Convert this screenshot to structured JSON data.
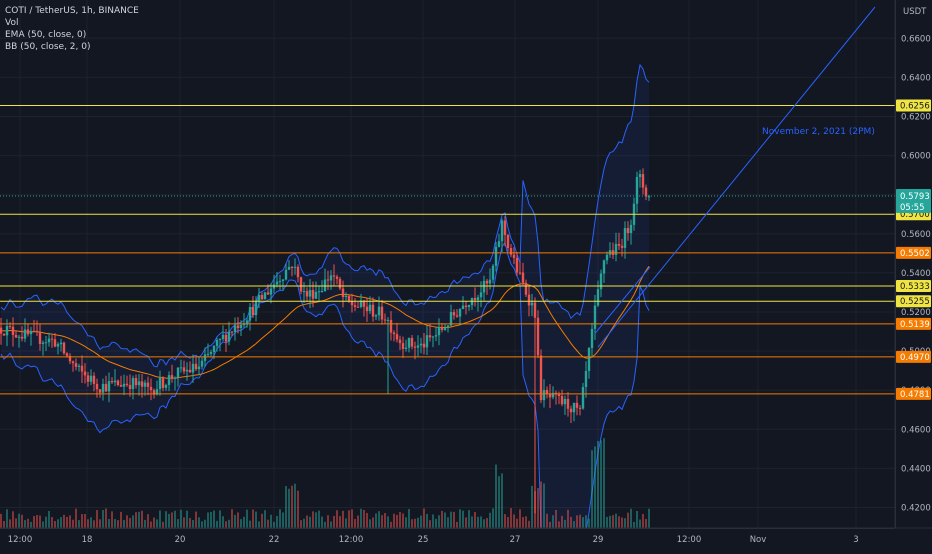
{
  "legend": {
    "symbol": "COTI / TetherUS, 1h, BINANCE",
    "vol": "Vol",
    "ema": "EMA (50, close, 0)",
    "bb": "BB (50, close, 2, 0)"
  },
  "price_axis": {
    "currency": "USDT",
    "ticks": [
      "0.6600",
      "0.6400",
      "0.6200",
      "0.6000",
      "0.5800",
      "0.5600",
      "0.5400",
      "0.5200",
      "0.5000",
      "0.4800",
      "0.4600",
      "0.4400",
      "0.4200"
    ]
  },
  "levels": [
    {
      "label": "0.6256",
      "color": "#f0e442",
      "style": "yellow"
    },
    {
      "label": "0.5700",
      "color": "#f0e442",
      "style": "yellow"
    },
    {
      "label": "0.5502",
      "color": "#f57c00",
      "style": "orange"
    },
    {
      "label": "0.5333",
      "color": "#f0e442",
      "style": "yellow"
    },
    {
      "label": "0.5255",
      "color": "#f0e442",
      "style": "yellow"
    },
    {
      "label": "0.5139",
      "color": "#f57c00",
      "style": "orange"
    },
    {
      "label": "0.4970",
      "color": "#f57c00",
      "style": "orange"
    },
    {
      "label": "0.4781",
      "color": "#f57c00",
      "style": "orange"
    }
  ],
  "current_price": {
    "value": "0.5793",
    "countdown": "05:55",
    "color": "#26a69a"
  },
  "time_axis": {
    "labels": [
      "12:00",
      "18",
      "20",
      "22",
      "12:00",
      "25",
      "27",
      "29",
      "12:00",
      "Nov",
      "3"
    ]
  },
  "annotation": {
    "text": "November 2, 2021 (2PM)"
  },
  "colors": {
    "background": "#131722",
    "up": "#26a69a",
    "down": "#ef5350",
    "bollinger": "#2962ff",
    "ema": "#f57c00",
    "trendline": "#2962ff"
  },
  "chart_data": {
    "type": "candlestick",
    "price_range": [
      0.41,
      0.676
    ],
    "last_price": 0.5793,
    "indicators": [
      "Vol",
      "EMA (50, close, 0)",
      "BB (50, close, 2, 0)"
    ],
    "grid": true
  }
}
